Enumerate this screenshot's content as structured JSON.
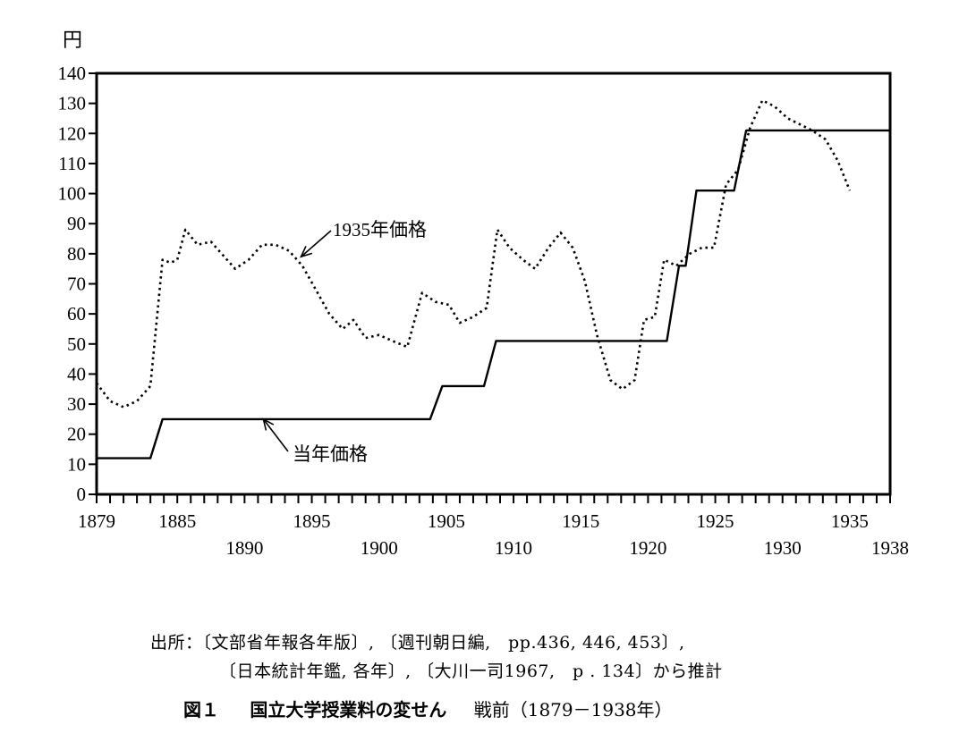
{
  "chart_data": {
    "type": "line",
    "ylabel": "円",
    "ylim": [
      0,
      140
    ],
    "xlim": [
      1879,
      1938
    ],
    "y_ticks": [
      "0",
      "10",
      "20",
      "30",
      "40",
      "50",
      "60",
      "70",
      "80",
      "90",
      "100",
      "110",
      "120",
      "130",
      "140"
    ],
    "x_tick_labels": [
      {
        "year": 1879,
        "label": "1879",
        "row": "upper"
      },
      {
        "year": 1885,
        "label": "1885",
        "row": "upper"
      },
      {
        "year": 1890,
        "label": "1890",
        "row": "lower"
      },
      {
        "year": 1895,
        "label": "1895",
        "row": "upper"
      },
      {
        "year": 1900,
        "label": "1900",
        "row": "lower"
      },
      {
        "year": 1905,
        "label": "1905",
        "row": "upper"
      },
      {
        "year": 1910,
        "label": "1910",
        "row": "lower"
      },
      {
        "year": 1915,
        "label": "1915",
        "row": "upper"
      },
      {
        "year": 1920,
        "label": "1920",
        "row": "lower"
      },
      {
        "year": 1925,
        "label": "1925",
        "row": "upper"
      },
      {
        "year": 1930,
        "label": "1930",
        "row": "lower"
      },
      {
        "year": 1935,
        "label": "1935",
        "row": "upper"
      },
      {
        "year": 1938,
        "label": "1938",
        "row": "lower"
      }
    ],
    "grid": false,
    "series": [
      {
        "name": "当年価格",
        "style": "solid",
        "color": "#000000",
        "points": [
          [
            1879,
            12
          ],
          [
            1883,
            12
          ],
          [
            1883.9,
            25
          ],
          [
            1903.8,
            25
          ],
          [
            1904.7,
            36
          ],
          [
            1907.8,
            36
          ],
          [
            1908.7,
            51
          ],
          [
            1921.4,
            51
          ],
          [
            1922.3,
            76
          ],
          [
            1922.8,
            76
          ],
          [
            1923.6,
            101
          ],
          [
            1926.4,
            101
          ],
          [
            1927.3,
            121
          ],
          [
            1938,
            121
          ]
        ]
      },
      {
        "name": "1935年価格",
        "style": "dotted",
        "color": "#000000",
        "points": [
          [
            1879,
            37
          ],
          [
            1880,
            31
          ],
          [
            1881,
            29
          ],
          [
            1882,
            31
          ],
          [
            1883,
            36
          ],
          [
            1883.9,
            78
          ],
          [
            1884.5,
            77
          ],
          [
            1885,
            78
          ],
          [
            1885.6,
            88
          ],
          [
            1886.5,
            83
          ],
          [
            1887.5,
            84
          ],
          [
            1888.5,
            79
          ],
          [
            1889.3,
            75
          ],
          [
            1890.3,
            78
          ],
          [
            1891.3,
            83
          ],
          [
            1892.3,
            83
          ],
          [
            1893.3,
            81
          ],
          [
            1894.3,
            76
          ],
          [
            1895.3,
            68
          ],
          [
            1896.3,
            60
          ],
          [
            1897.3,
            55
          ],
          [
            1898.1,
            58
          ],
          [
            1899,
            52
          ],
          [
            1900,
            53
          ],
          [
            1901,
            51
          ],
          [
            1902.1,
            49
          ],
          [
            1903.2,
            67
          ],
          [
            1904.2,
            64
          ],
          [
            1905.2,
            63
          ],
          [
            1906,
            57
          ],
          [
            1907,
            59
          ],
          [
            1908,
            62
          ],
          [
            1908.8,
            88
          ],
          [
            1909.7,
            82
          ],
          [
            1910.7,
            78
          ],
          [
            1911.6,
            75
          ],
          [
            1912.6,
            82
          ],
          [
            1913.5,
            87
          ],
          [
            1914.4,
            82
          ],
          [
            1915.3,
            71
          ],
          [
            1916.2,
            53
          ],
          [
            1917.2,
            38
          ],
          [
            1918.1,
            35
          ],
          [
            1919,
            38
          ],
          [
            1919.7,
            58
          ],
          [
            1920.5,
            59
          ],
          [
            1921.2,
            78
          ],
          [
            1922.1,
            76
          ],
          [
            1923.1,
            80
          ],
          [
            1924,
            82
          ],
          [
            1924.9,
            82
          ],
          [
            1925.8,
            103
          ],
          [
            1926.7,
            108
          ],
          [
            1927.6,
            122
          ],
          [
            1928.5,
            131
          ],
          [
            1929.4,
            129
          ],
          [
            1930.4,
            125
          ],
          [
            1931.3,
            123
          ],
          [
            1932.2,
            121
          ],
          [
            1933.2,
            118
          ],
          [
            1934.1,
            111
          ],
          [
            1935,
            101
          ]
        ]
      }
    ],
    "annotations": [
      {
        "label": "1935年価格",
        "series": "1935年価格",
        "at": [
          1894.2,
          79
        ]
      },
      {
        "label": "当年価格",
        "series": "当年価格",
        "at": [
          1891.4,
          25
        ]
      }
    ]
  },
  "source": {
    "line1": "出所：〔文部省年報各年版〕, 〔週刊朝日編,　pp.436, 446, 453〕,",
    "line2": "〔日本統計年鑑, 各年〕, 〔大川一司1967,　p . 134〕から推計"
  },
  "caption": {
    "number": "図１",
    "title": "国立大学授業料の変せん",
    "period": "戦前（1879－1938年）"
  }
}
